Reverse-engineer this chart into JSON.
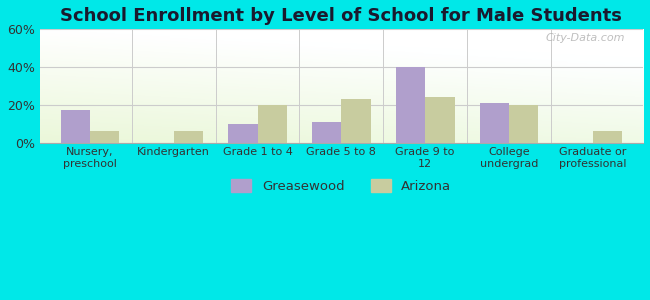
{
  "title": "School Enrollment by Level of School for Male Students",
  "categories": [
    "Nursery,\npreschool",
    "Kindergarten",
    "Grade 1 to 4",
    "Grade 5 to 8",
    "Grade 9 to\n12",
    "College\nundergrad",
    "Graduate or\nprofessional"
  ],
  "greasewood_values": [
    17,
    0,
    10,
    11,
    40,
    21,
    0
  ],
  "arizona_values": [
    6,
    6,
    20,
    23,
    24,
    20,
    6
  ],
  "greasewood_color": "#b09fcc",
  "arizona_color": "#c8cc9f",
  "background_color": "#00e8e8",
  "ylim": [
    0,
    60
  ],
  "yticks": [
    0,
    20,
    40,
    60
  ],
  "ytick_labels": [
    "0%",
    "20%",
    "40%",
    "60%"
  ],
  "legend_labels": [
    "Greasewood",
    "Arizona"
  ],
  "title_fontsize": 13,
  "bar_width": 0.35,
  "watermark": "City-Data.com"
}
